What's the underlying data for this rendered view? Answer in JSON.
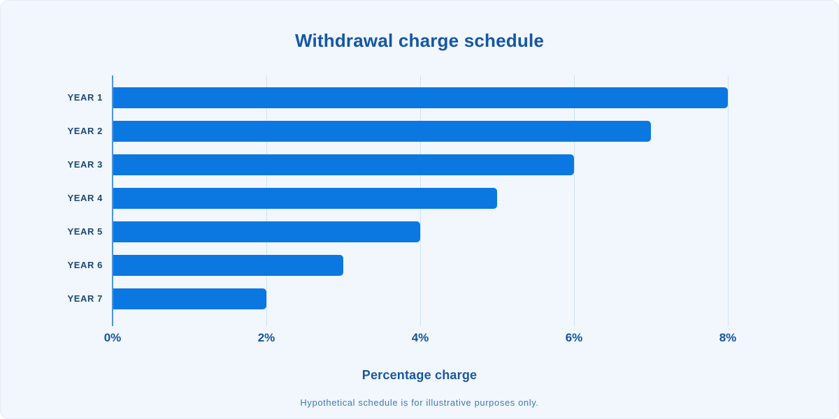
{
  "chart_data": {
    "type": "bar",
    "orientation": "horizontal",
    "title": "Withdrawal charge schedule",
    "categories": [
      "YEAR 1",
      "YEAR 2",
      "YEAR 3",
      "YEAR 4",
      "YEAR 5",
      "YEAR 6",
      "YEAR 7"
    ],
    "values": [
      8,
      7,
      6,
      5,
      4,
      3,
      2
    ],
    "unit": "%",
    "xlabel": "Percentage charge",
    "x_ticks": [
      "0%",
      "2%",
      "4%",
      "6%",
      "8%"
    ],
    "x_tick_values": [
      0,
      2,
      4,
      6,
      8
    ],
    "xlim": [
      0,
      8
    ],
    "grid": "vertical-only",
    "legend": "none",
    "footnote": "Hypothetical schedule is for illustrative purposes only.",
    "colors": {
      "bar": "#0b78e1",
      "card_background": "#f1f7fd",
      "gridline": "#cfe2f5",
      "axis_line": "#4f95dc",
      "title_text": "#1557a6",
      "category_text": "#1d4778",
      "tick_text": "#14549f",
      "xlabel_text": "#1a57a5",
      "footnote_text": "#4478b7"
    }
  }
}
